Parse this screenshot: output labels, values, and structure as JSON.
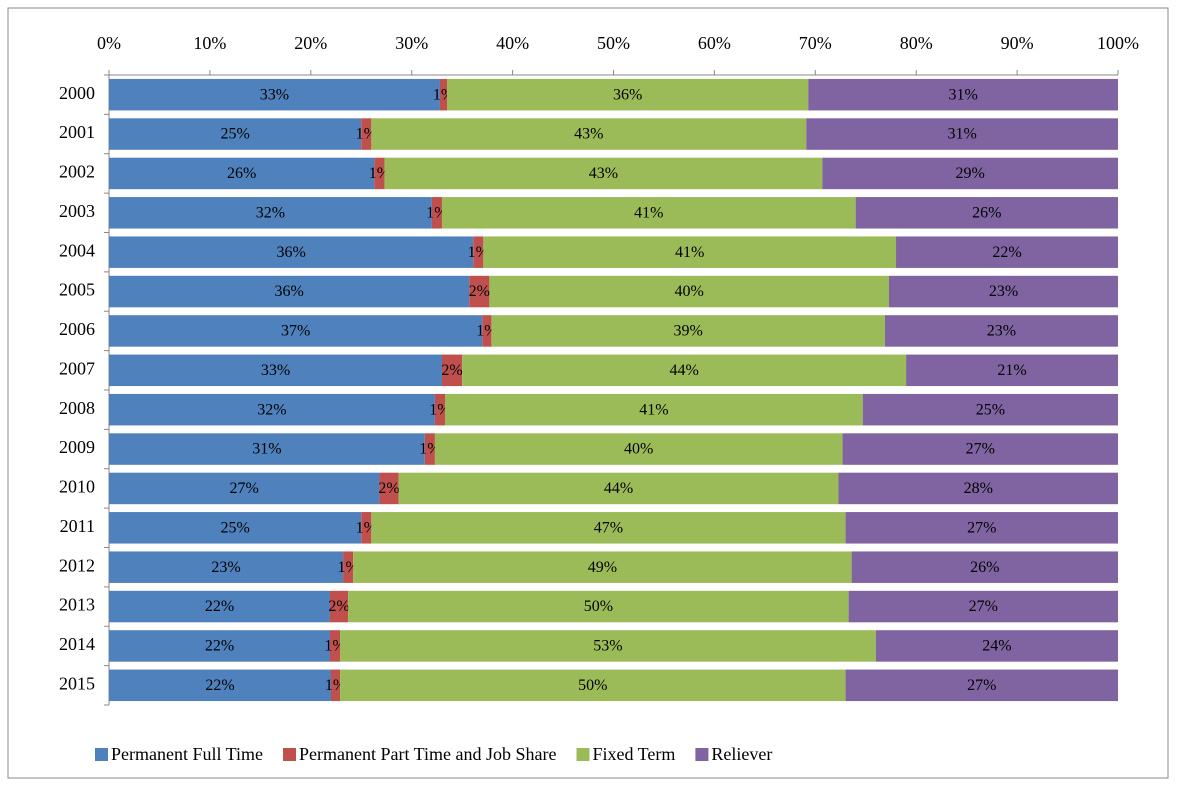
{
  "chart_data": {
    "type": "stacked-bar-horizontal",
    "categories": [
      "2000",
      "2001",
      "2002",
      "2003",
      "2004",
      "2005",
      "2006",
      "2007",
      "2008",
      "2009",
      "2010",
      "2011",
      "2012",
      "2013",
      "2014",
      "2015"
    ],
    "series": [
      {
        "name": "Permanent Full Time",
        "color": "#4f81bd",
        "values": [
          32.8,
          25.0,
          26.3,
          32.0,
          36.1,
          35.7,
          37.0,
          33.0,
          32.3,
          31.3,
          26.8,
          25.0,
          23.2,
          21.9,
          21.9,
          22.0
        ],
        "value_labels": [
          "33%",
          "25%",
          "26%",
          "32%",
          "36%",
          "36%",
          "37%",
          "33%",
          "32%",
          "31%",
          "27%",
          "25%",
          "23%",
          "22%",
          "22%",
          "22%"
        ]
      },
      {
        "name": "Permanent Part Time and Job Share",
        "color": "#c0504d",
        "values": [
          0.7,
          1.0,
          1.0,
          1.0,
          1.0,
          2.0,
          0.9,
          2.0,
          1.0,
          1.0,
          1.9,
          1.0,
          1.0,
          1.8,
          1.0,
          0.9
        ],
        "value_labels": [
          "1%",
          "1%",
          "1%",
          "1%",
          "1%",
          "2%",
          "1%",
          "2%",
          "1%",
          "1%",
          "2%",
          "1%",
          "1%",
          "2%",
          "1%",
          "1%"
        ]
      },
      {
        "name": "Fixed Term",
        "color": "#9bbb59",
        "values": [
          35.8,
          43.1,
          43.4,
          41.0,
          40.9,
          39.6,
          39.0,
          44.0,
          41.4,
          40.4,
          43.6,
          47.0,
          49.4,
          49.6,
          53.1,
          50.1
        ],
        "value_labels": [
          "36%",
          "43%",
          "43%",
          "41%",
          "41%",
          "40%",
          "39%",
          "44%",
          "41%",
          "40%",
          "44%",
          "47%",
          "49%",
          "50%",
          "53%",
          "50%"
        ]
      },
      {
        "name": "Reliever",
        "color": "#8064a2",
        "values": [
          30.7,
          30.9,
          29.3,
          26.0,
          22.0,
          22.7,
          23.1,
          21.0,
          25.3,
          27.3,
          27.7,
          27.0,
          26.4,
          26.7,
          24.0,
          27.0
        ],
        "value_labels": [
          "31%",
          "31%",
          "29%",
          "26%",
          "22%",
          "23%",
          "23%",
          "21%",
          "25%",
          "27%",
          "28%",
          "27%",
          "26%",
          "27%",
          "24%",
          "27%"
        ]
      }
    ],
    "xlim": [
      0,
      100
    ],
    "xticks": [
      {
        "value": 0,
        "label": "0%"
      },
      {
        "value": 10,
        "label": "10%"
      },
      {
        "value": 20,
        "label": "20%"
      },
      {
        "value": 30,
        "label": "30%"
      },
      {
        "value": 40,
        "label": "40%"
      },
      {
        "value": 50,
        "label": "50%"
      },
      {
        "value": 60,
        "label": "60%"
      },
      {
        "value": 70,
        "label": "70%"
      },
      {
        "value": 80,
        "label": "80%"
      },
      {
        "value": 90,
        "label": "90%"
      },
      {
        "value": 100,
        "label": "100%"
      }
    ],
    "legend": "bottom"
  }
}
